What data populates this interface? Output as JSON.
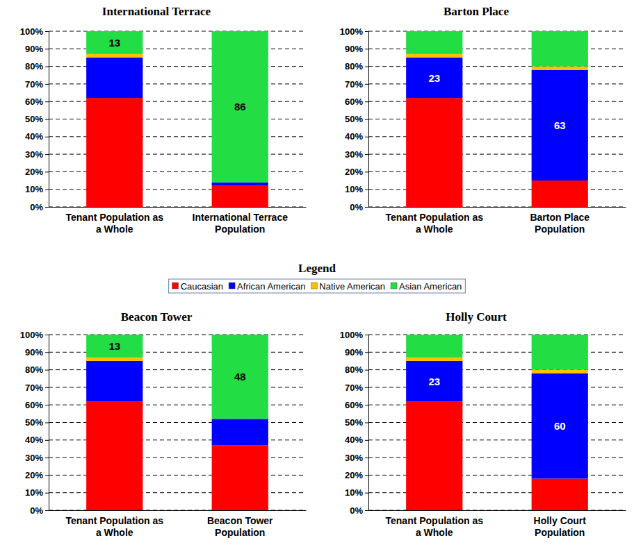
{
  "legend_title": "Legend",
  "chart_data": [
    {
      "type": "bar",
      "title": "International Terrace",
      "stacked": true,
      "grid": true,
      "data_labels": true,
      "legend": "bottom",
      "categories": [
        "Tenant Population as a Whole",
        "International Terrace Population"
      ],
      "ylim": [
        0,
        100
      ],
      "yticks": [
        {
          "value": 0,
          "label": "0%"
        },
        {
          "value": 10,
          "label": "10%"
        },
        {
          "value": 20,
          "label": "20%"
        },
        {
          "value": 30,
          "label": "30%"
        },
        {
          "value": 40,
          "label": "40%"
        },
        {
          "value": 50,
          "label": "50%"
        },
        {
          "value": 60,
          "label": "60%"
        },
        {
          "value": 70,
          "label": "70%"
        },
        {
          "value": 80,
          "label": "80%"
        },
        {
          "value": 90,
          "label": "90%"
        },
        {
          "value": 100,
          "label": "100%"
        }
      ],
      "series": [
        {
          "name": "Caucasian",
          "color": "#ff0000",
          "values": [
            62,
            12
          ]
        },
        {
          "name": "African American",
          "color": "#0000ff",
          "values": [
            23,
            2
          ]
        },
        {
          "name": "Native American",
          "color": "#ffc000",
          "values": [
            2,
            0
          ]
        },
        {
          "name": "Asian American",
          "color": "#22dd44",
          "values": [
            13,
            86
          ],
          "value_labels": [
            "13",
            "86"
          ]
        }
      ]
    },
    {
      "type": "bar",
      "title": "Barton Place",
      "stacked": true,
      "grid": true,
      "data_labels": true,
      "categories": [
        "Tenant Population as a Whole",
        "Barton Place Population"
      ],
      "ylim": [
        0,
        100
      ],
      "yticks": [
        {
          "value": 0,
          "label": "0%"
        },
        {
          "value": 10,
          "label": "10%"
        },
        {
          "value": 20,
          "label": "20%"
        },
        {
          "value": 30,
          "label": "30%"
        },
        {
          "value": 40,
          "label": "40%"
        },
        {
          "value": 50,
          "label": "50%"
        },
        {
          "value": 60,
          "label": "60%"
        },
        {
          "value": 70,
          "label": "70%"
        },
        {
          "value": 80,
          "label": "80%"
        },
        {
          "value": 90,
          "label": "90%"
        },
        {
          "value": 100,
          "label": "100%"
        }
      ],
      "series": [
        {
          "color": "#ff0000",
          "values": [
            62,
            15
          ]
        },
        {
          "color": "#0000ff",
          "values": [
            23,
            63
          ],
          "value_labels": [
            "23",
            "63"
          ]
        },
        {
          "color": "#ffc000",
          "values": [
            2,
            2
          ]
        },
        {
          "color": "#22dd44",
          "values": [
            13,
            20
          ]
        }
      ]
    },
    {
      "type": "bar",
      "title": "Beacon Tower",
      "stacked": true,
      "grid": true,
      "data_labels": true,
      "categories": [
        "Tenant Population as a Whole",
        "Beacon Tower Population"
      ],
      "ylim": [
        0,
        100
      ],
      "yticks": [
        {
          "value": 0,
          "label": "0%"
        },
        {
          "value": 10,
          "label": "10%"
        },
        {
          "value": 20,
          "label": "20%"
        },
        {
          "value": 30,
          "label": "30%"
        },
        {
          "value": 40,
          "label": "40%"
        },
        {
          "value": 50,
          "label": "50%"
        },
        {
          "value": 60,
          "label": "60%"
        },
        {
          "value": 70,
          "label": "70%"
        },
        {
          "value": 80,
          "label": "80%"
        },
        {
          "value": 90,
          "label": "90%"
        },
        {
          "value": 100,
          "label": "100%"
        }
      ],
      "series": [
        {
          "color": "#ff0000",
          "values": [
            62,
            37
          ]
        },
        {
          "color": "#0000ff",
          "values": [
            23,
            15
          ]
        },
        {
          "color": "#ffc000",
          "values": [
            2,
            0
          ]
        },
        {
          "color": "#22dd44",
          "values": [
            13,
            48
          ],
          "value_labels": [
            "13",
            "48"
          ]
        }
      ]
    },
    {
      "type": "bar",
      "title": "Holly Court",
      "stacked": true,
      "grid": true,
      "data_labels": true,
      "categories": [
        "Tenant Population as a Whole",
        "Holly Court Population"
      ],
      "ylim": [
        0,
        100
      ],
      "yticks": [
        {
          "value": 0,
          "label": "0%"
        },
        {
          "value": 10,
          "label": "10%"
        },
        {
          "value": 20,
          "label": "20%"
        },
        {
          "value": 30,
          "label": "30%"
        },
        {
          "value": 40,
          "label": "40%"
        },
        {
          "value": 50,
          "label": "50%"
        },
        {
          "value": 60,
          "label": "60%"
        },
        {
          "value": 70,
          "label": "70%"
        },
        {
          "value": 80,
          "label": "80%"
        },
        {
          "value": 90,
          "label": "90%"
        },
        {
          "value": 100,
          "label": "100%"
        }
      ],
      "series": [
        {
          "color": "#ff0000",
          "values": [
            62,
            18
          ]
        },
        {
          "color": "#0000ff",
          "values": [
            23,
            60
          ],
          "value_labels": [
            "23",
            "60"
          ]
        },
        {
          "color": "#ffc000",
          "values": [
            2,
            2
          ]
        },
        {
          "color": "#22dd44",
          "values": [
            13,
            20
          ]
        }
      ]
    }
  ]
}
